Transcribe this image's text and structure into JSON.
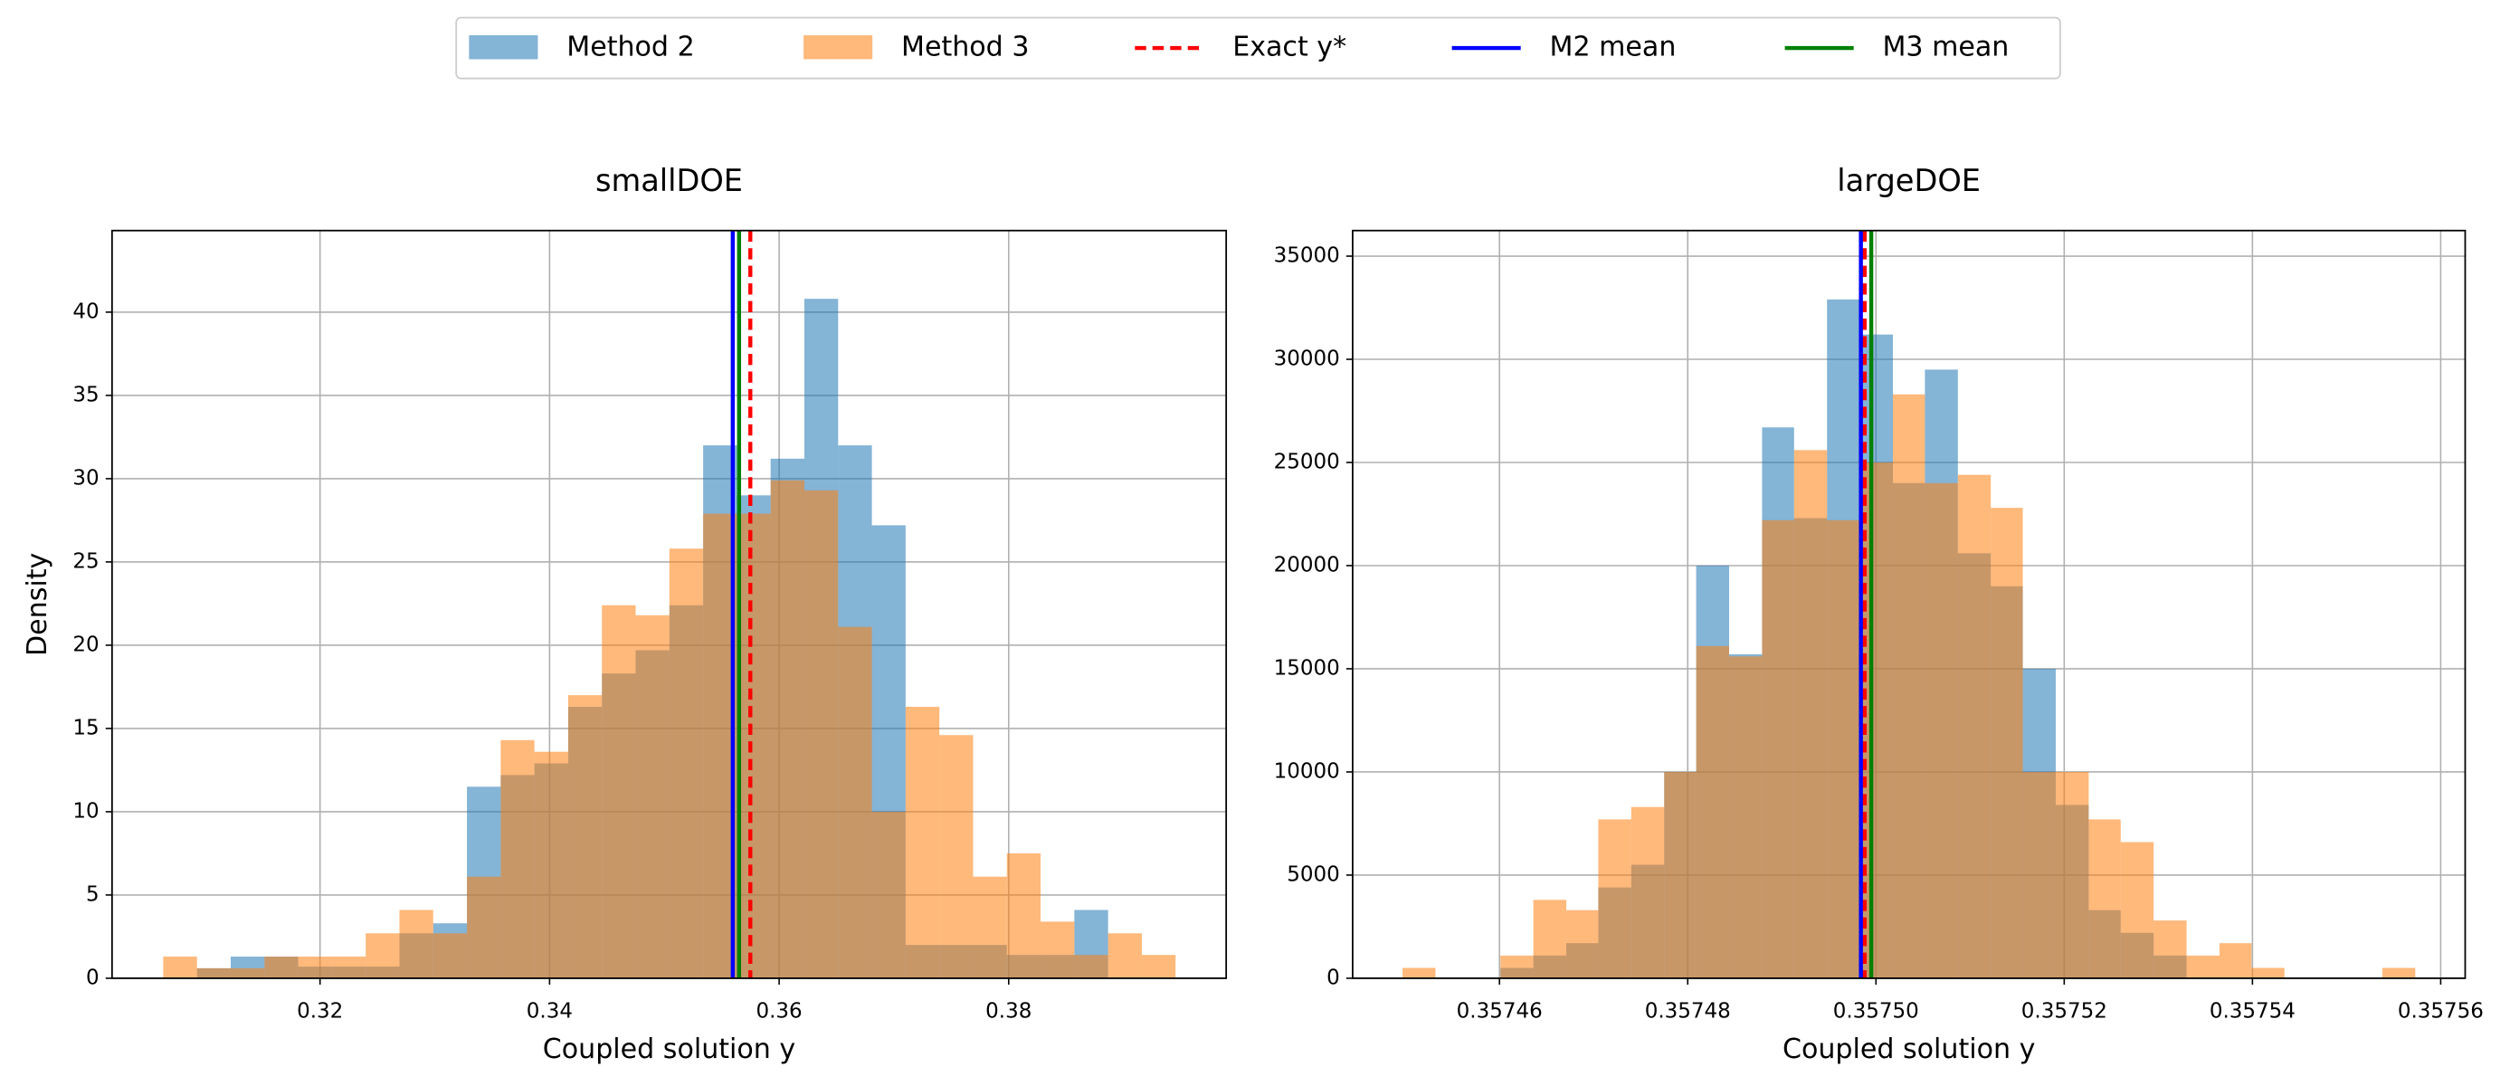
{
  "legend_loc": "upper center",
  "chart_data": [
    {
      "type": "histogram",
      "title": "smallDOE",
      "xlabel": "Coupled solution y",
      "ylabel": "Density",
      "xlim": [
        0.30188,
        0.39895
      ],
      "ylim": [
        0,
        44.9
      ],
      "xticks": [
        0.32,
        0.34,
        0.36,
        0.38
      ],
      "yticks": [
        0,
        5,
        10,
        15,
        20,
        25,
        30,
        35,
        40
      ],
      "grid": true,
      "series": [
        {
          "name": "Method 2",
          "color": "#1f77b4",
          "alpha": 0.55,
          "bins": [
            0.30928,
            0.31222,
            0.31516,
            0.3181,
            0.32104,
            0.32398,
            0.32692,
            0.32986,
            0.3328,
            0.33574,
            0.33868,
            0.34162,
            0.34456,
            0.3475,
            0.35044,
            0.35338,
            0.35632,
            0.35926,
            0.3622,
            0.36514,
            0.36808,
            0.37102,
            0.37396,
            0.3769,
            0.37984,
            0.38278,
            0.38572,
            0.38866
          ],
          "values": [
            0.6,
            1.3,
            1.3,
            0.7,
            0.7,
            0.7,
            2.7,
            3.3,
            11.5,
            12.2,
            12.9,
            16.3,
            18.3,
            19.7,
            22.4,
            32.0,
            29.0,
            31.2,
            40.8,
            32.0,
            27.2,
            2.0,
            2.0,
            2.0,
            1.4,
            1.4,
            4.1
          ]
        },
        {
          "name": "Method 3",
          "color": "#ff7f0e",
          "alpha": 0.55,
          "bins": [
            0.30634,
            0.30928,
            0.31222,
            0.31516,
            0.3181,
            0.32104,
            0.32398,
            0.32692,
            0.32986,
            0.3328,
            0.33574,
            0.33868,
            0.34162,
            0.34456,
            0.3475,
            0.35044,
            0.35338,
            0.35632,
            0.35926,
            0.3622,
            0.36514,
            0.36808,
            0.37102,
            0.37396,
            0.3769,
            0.37984,
            0.38278,
            0.38572,
            0.38866,
            0.3916,
            0.39454
          ],
          "values": [
            1.3,
            0.6,
            0.6,
            1.3,
            1.3,
            1.3,
            2.7,
            4.1,
            2.7,
            6.1,
            14.3,
            13.6,
            17.0,
            22.4,
            21.8,
            25.8,
            27.9,
            27.9,
            29.9,
            29.3,
            21.1,
            10.0,
            16.3,
            14.6,
            6.1,
            7.5,
            3.4,
            1.4,
            2.7,
            1.4
          ]
        }
      ],
      "lines": [
        {
          "name": "Exact y*",
          "color": "#ff0000",
          "style": "dashed",
          "x": 0.35749
        },
        {
          "name": "M2 mean",
          "color": "#0000ff",
          "style": "solid",
          "x": 0.35596
        },
        {
          "name": "M3 mean",
          "color": "#008000",
          "style": "solid",
          "x": 0.35651
        }
      ]
    },
    {
      "type": "histogram",
      "title": "largeDOE",
      "xlabel": "Coupled solution y",
      "xlim": [
        0.3574444,
        0.3575626
      ],
      "ylim": [
        0,
        36240
      ],
      "xticks": [
        0.35746,
        0.35748,
        {
          "value": 0.3575,
          "label": "0.35750"
        },
        0.35752,
        0.35754,
        0.35756
      ],
      "yticks": [
        0,
        5000,
        10000,
        15000,
        20000,
        25000,
        30000,
        35000
      ],
      "grid": true,
      "series": [
        {
          "color": "#1f77b4",
          "alpha": 0.55,
          "bins": [
            0.3574601,
            0.3574636,
            0.3574671,
            0.3574705,
            0.357474,
            0.3574775,
            0.3574809,
            0.3574844,
            0.3574879,
            0.3574913,
            0.3574948,
            0.3574983,
            0.3575018,
            0.3575052,
            0.3575087,
            0.3575122,
            0.3575156,
            0.3575191,
            0.3575226,
            0.357526,
            0.3575295,
            0.357533
          ],
          "values": [
            500,
            1100,
            1700,
            4400,
            5500,
            10000,
            20000,
            15700,
            26700,
            22300,
            32900,
            31200,
            24000,
            29500,
            20600,
            19000,
            15000,
            8400,
            3300,
            2200,
            1100
          ]
        },
        {
          "color": "#ff7f0e",
          "alpha": 0.55,
          "bins": [
            0.3574497,
            0.3574532,
            0.3574566,
            0.3574601,
            0.3574636,
            0.3574671,
            0.3574705,
            0.357474,
            0.3574775,
            0.3574809,
            0.3574844,
            0.3574879,
            0.3574913,
            0.3574948,
            0.3574983,
            0.3575018,
            0.3575052,
            0.3575087,
            0.3575122,
            0.3575156,
            0.3575191,
            0.3575226,
            0.357526,
            0.3575295,
            0.357533,
            0.3575365,
            0.3575399,
            0.3575434,
            0.3575469,
            0.3575503,
            0.3575538,
            0.3575573
          ],
          "values": [
            500,
            0,
            0,
            1100,
            3800,
            3300,
            7700,
            8300,
            10000,
            16100,
            15600,
            22200,
            25600,
            22200,
            25000,
            28300,
            24000,
            24400,
            22800,
            10000,
            10000,
            7700,
            6600,
            2800,
            1100,
            1700,
            500,
            0,
            0,
            0,
            500
          ]
        }
      ],
      "lines": [
        {
          "color": "#ff0000",
          "style": "dashed",
          "x": 0.3574988
        },
        {
          "color": "#0000ff",
          "style": "solid",
          "x": 0.3574984
        },
        {
          "color": "#008000",
          "style": "solid",
          "x": 0.3574995
        }
      ]
    }
  ]
}
